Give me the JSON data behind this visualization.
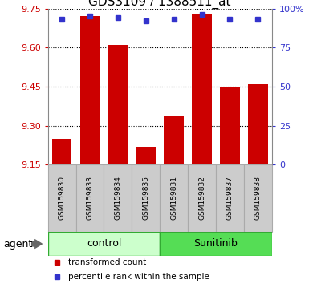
{
  "title": "GDS3109 / 1388511_at",
  "samples": [
    "GSM159830",
    "GSM159833",
    "GSM159834",
    "GSM159835",
    "GSM159831",
    "GSM159832",
    "GSM159837",
    "GSM159838"
  ],
  "bar_values": [
    9.25,
    9.72,
    9.61,
    9.22,
    9.34,
    9.73,
    9.45,
    9.46
  ],
  "percentile_values": [
    93,
    95,
    94,
    92,
    93,
    96,
    93,
    93
  ],
  "ylim_left": [
    9.15,
    9.75
  ],
  "yticks_left": [
    9.15,
    9.3,
    9.45,
    9.6,
    9.75
  ],
  "ylim_right": [
    0,
    100
  ],
  "yticks_right": [
    0,
    25,
    50,
    75,
    100
  ],
  "bar_color": "#cc0000",
  "marker_color": "#3333cc",
  "groups": [
    {
      "label": "control",
      "indices": [
        0,
        1,
        2,
        3
      ],
      "facecolor": "#ccffcc",
      "edgecolor": "#33aa33"
    },
    {
      "label": "Sunitinib",
      "indices": [
        4,
        5,
        6,
        7
      ],
      "facecolor": "#55dd55",
      "edgecolor": "#33aa33"
    }
  ],
  "group_row_label": "agent",
  "legend_items": [
    {
      "label": "transformed count",
      "color": "#cc0000"
    },
    {
      "label": "percentile rank within the sample",
      "color": "#3333cc"
    }
  ],
  "tick_color_left": "#cc0000",
  "tick_color_right": "#3333cc",
  "title_fontsize": 11,
  "tick_fontsize": 8,
  "bar_width": 0.7,
  "grid_linestyle": ":",
  "grid_linewidth": 0.8,
  "sample_box_color": "#cccccc",
  "sample_box_edge": "#aaaaaa",
  "sample_text_fontsize": 6.5,
  "group_text_fontsize": 9,
  "legend_fontsize": 7.5,
  "agent_fontsize": 9
}
